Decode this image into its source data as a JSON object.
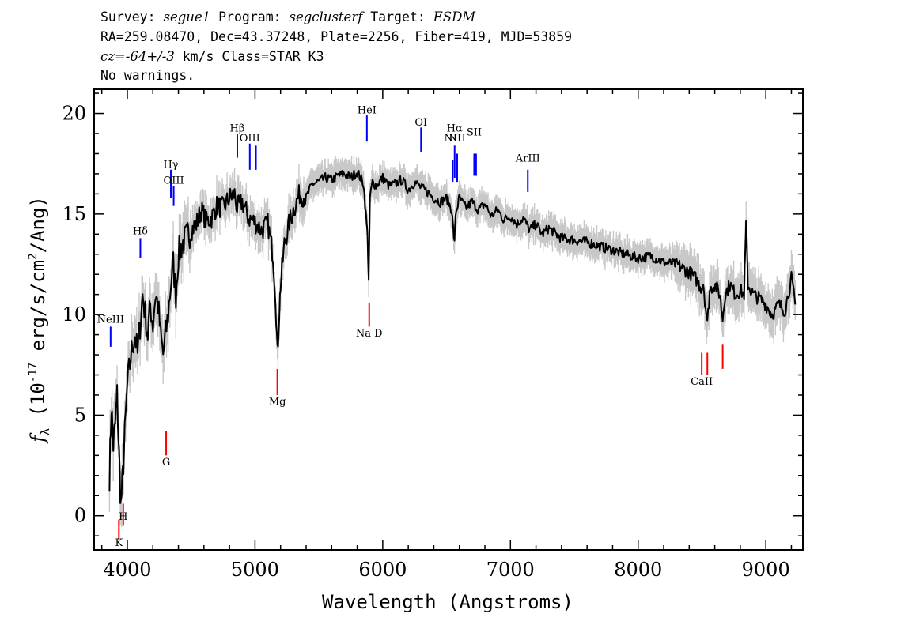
{
  "header": {
    "line1": {
      "survey_label": "Survey: ",
      "survey": "segue1",
      "program_label": " Program: ",
      "program": "segclusterf",
      "target_label": " Target: ",
      "target": "ESDM"
    },
    "line2": "RA=259.08470, Dec=43.37248, Plate=2256, Fiber=419, MJD=53859",
    "line3": {
      "cz": "cz=-64+/-3",
      "rest": " km/s Class=STAR K3"
    },
    "line4": "No warnings."
  },
  "colors": {
    "flux": "#000000",
    "error_band": "#c8c8c8",
    "emission": "#0000ff",
    "absorption": "#ff0000"
  },
  "chart_data": {
    "type": "line",
    "xlabel": "Wavelength (Angstroms)",
    "ylabel_parts": {
      "f": "f",
      "sub": "λ",
      "pre": " (10",
      "exp1": "-17",
      "mid": " erg/s/cm",
      "exp2": "2",
      "post": "/Ang)"
    },
    "xlim": [
      3740,
      9290
    ],
    "ylim": [
      -1.7,
      21.2
    ],
    "x_ticks": [
      4000,
      5000,
      6000,
      7000,
      8000,
      9000
    ],
    "y_ticks": [
      0,
      5,
      10,
      15,
      20
    ],
    "series": [
      {
        "x": [
          3860,
          3875,
          3890,
          3905,
          3920,
          3935,
          3950,
          3965,
          3980,
          4000,
          4020,
          4040,
          4060,
          4080,
          4100,
          4120,
          4140,
          4160,
          4180,
          4200,
          4220,
          4240,
          4260,
          4280,
          4300,
          4320,
          4340,
          4360,
          4380,
          4400,
          4430,
          4460,
          4500,
          4540,
          4580,
          4620,
          4660,
          4700,
          4750,
          4800,
          4840,
          4860,
          4900,
          4950,
          5000,
          5050,
          5100,
          5140,
          5160,
          5175,
          5185,
          5200,
          5230,
          5270,
          5300,
          5350,
          5400,
          5450,
          5500,
          5550,
          5600,
          5650,
          5700,
          5750,
          5800,
          5850,
          5880,
          5890,
          5895,
          5900,
          5920,
          5950,
          6000,
          6050,
          6100,
          6150,
          6200,
          6250,
          6300,
          6350,
          6400,
          6450,
          6500,
          6540,
          6562,
          6570,
          6600,
          6650,
          6700,
          6750,
          6800,
          6850,
          6900,
          6950,
          7000,
          7050,
          7100,
          7150,
          7200,
          7250,
          7300,
          7400,
          7500,
          7600,
          7700,
          7800,
          7900,
          8000,
          8100,
          8200,
          8300,
          8400,
          8450,
          8498,
          8510,
          8542,
          8560,
          8600,
          8640,
          8662,
          8680,
          8720,
          8760,
          8800,
          8830,
          8845,
          8860,
          8900,
          8950,
          9000,
          9050,
          9100,
          9150,
          9200,
          9230
        ],
        "y": [
          2.0,
          5.5,
          3.5,
          4.5,
          6.0,
          3.0,
          0.5,
          2.0,
          4.0,
          6.5,
          7.5,
          8.5,
          9.0,
          8.0,
          9.5,
          11.0,
          10.0,
          9.0,
          10.5,
          9.5,
          11.0,
          10.5,
          9.0,
          8.0,
          9.0,
          10.0,
          11.5,
          12.5,
          11.0,
          13.0,
          13.5,
          13.8,
          14.2,
          14.5,
          15.2,
          14.6,
          14.8,
          15.4,
          15.3,
          15.8,
          16.0,
          15.3,
          15.6,
          14.8,
          14.6,
          14.2,
          14.5,
          13.0,
          11.0,
          8.0,
          9.5,
          11.5,
          13.5,
          14.6,
          15.2,
          16.0,
          15.8,
          16.5,
          16.6,
          16.8,
          16.7,
          16.9,
          17.0,
          16.8,
          17.1,
          16.5,
          14.0,
          11.8,
          13.5,
          15.8,
          16.6,
          16.4,
          16.8,
          16.4,
          16.5,
          16.7,
          16.2,
          16.6,
          16.3,
          16.1,
          15.8,
          15.6,
          15.8,
          15.2,
          13.5,
          15.0,
          15.8,
          15.3,
          15.6,
          15.2,
          15.5,
          14.9,
          15.2,
          14.7,
          14.9,
          14.5,
          14.8,
          14.2,
          14.5,
          14.0,
          14.3,
          13.8,
          13.7,
          13.6,
          13.4,
          13.2,
          13.0,
          12.8,
          12.9,
          12.6,
          12.5,
          12.1,
          11.8,
          11.3,
          11.6,
          9.5,
          11.2,
          11.5,
          11.0,
          9.8,
          11.0,
          11.5,
          11.0,
          11.2,
          11.0,
          14.5,
          11.5,
          11.0,
          10.8,
          10.5,
          10.0,
          10.5,
          10.2,
          11.8,
          10.5
        ]
      }
    ],
    "line_markers": [
      {
        "label": "NeIII",
        "x": 3869,
        "type": "emission",
        "y_top": 9.4,
        "y_bottom": 8.4,
        "label_y": 9.6
      },
      {
        "label": "Hδ",
        "x": 4102,
        "type": "emission",
        "y_top": 13.8,
        "y_bottom": 12.8,
        "label_y": 14.0
      },
      {
        "label": "Hγ",
        "x": 4341,
        "type": "emission",
        "y_top": 17.2,
        "y_bottom": 15.8,
        "label_y": 17.3
      },
      {
        "label": "OIII",
        "x": 4363,
        "type": "emission",
        "y_top": 16.4,
        "y_bottom": 15.4,
        "label_y": 16.5
      },
      {
        "label": "Hβ",
        "x": 4861,
        "type": "emission",
        "y_top": 19.0,
        "y_bottom": 17.8,
        "label_y": 19.1
      },
      {
        "label": "OIII",
        "x": 4959,
        "type": "emission",
        "y_top": 18.5,
        "y_bottom": 17.2,
        "label_y": 18.6
      },
      {
        "label": "",
        "x": 5007,
        "type": "emission",
        "y_top": 18.4,
        "y_bottom": 17.2,
        "label_y": 18.6
      },
      {
        "label": "HeI",
        "x": 5876,
        "type": "emission",
        "y_top": 19.9,
        "y_bottom": 18.6,
        "label_y": 20.0
      },
      {
        "label": "OI",
        "x": 6300,
        "type": "emission",
        "y_top": 19.3,
        "y_bottom": 18.1,
        "label_y": 19.4
      },
      {
        "label": "NII",
        "x": 6548,
        "type": "emission",
        "y_top": 17.7,
        "y_bottom": 16.6,
        "label_y": 18.6
      },
      {
        "label": "Hα",
        "x": 6563,
        "type": "emission",
        "y_top": 18.4,
        "y_bottom": 16.8,
        "label_y": 19.1
      },
      {
        "label": "NII",
        "x": 6583,
        "type": "emission",
        "y_top": 18.0,
        "y_bottom": 16.6,
        "label_y": 18.6
      },
      {
        "label": "SII",
        "x": 6716,
        "type": "emission",
        "y_top": 18.0,
        "y_bottom": 16.9,
        "label_y": 18.9
      },
      {
        "label": "",
        "x": 6731,
        "type": "emission",
        "y_top": 18.0,
        "y_bottom": 16.9,
        "label_y": 18.9
      },
      {
        "label": "ArIII",
        "x": 7136,
        "type": "emission",
        "y_top": 17.2,
        "y_bottom": 16.1,
        "label_y": 17.6
      },
      {
        "label": "K",
        "x": 3934,
        "type": "absorption",
        "y_top": -0.2,
        "y_bottom": -1.2,
        "label_y": -1.5
      },
      {
        "label": "H",
        "x": 3968,
        "type": "absorption",
        "y_top": 0.6,
        "y_bottom": -0.5,
        "label_y": -0.2
      },
      {
        "label": "G",
        "x": 4304,
        "type": "absorption",
        "y_top": 4.2,
        "y_bottom": 3.0,
        "label_y": 2.5
      },
      {
        "label": "Mg",
        "x": 5175,
        "type": "absorption",
        "y_top": 7.3,
        "y_bottom": 6.0,
        "label_y": 5.5
      },
      {
        "label": "Na D",
        "x": 5894,
        "type": "absorption",
        "y_top": 10.6,
        "y_bottom": 9.4,
        "label_y": 8.9
      },
      {
        "label": "CaII",
        "x": 8498,
        "type": "absorption",
        "y_top": 8.1,
        "y_bottom": 7.0,
        "label_y": 6.5
      },
      {
        "label": "",
        "x": 8542,
        "type": "absorption",
        "y_top": 8.1,
        "y_bottom": 7.0,
        "label_y": 6.5
      },
      {
        "label": "",
        "x": 8662,
        "type": "absorption",
        "y_top": 8.5,
        "y_bottom": 7.3,
        "label_y": 6.5
      }
    ]
  }
}
